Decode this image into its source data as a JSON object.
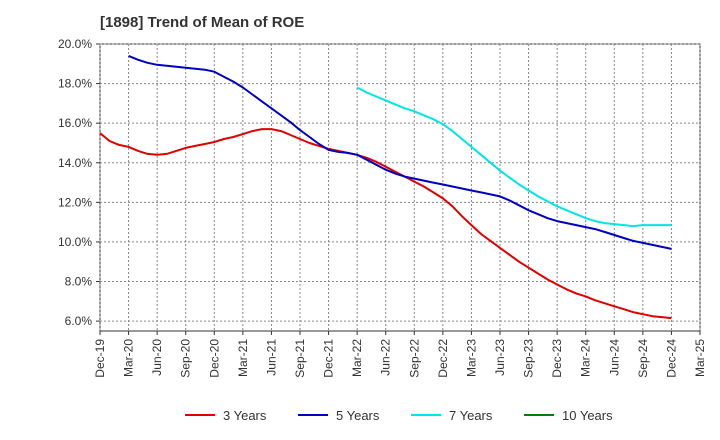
{
  "chart_data": {
    "type": "line",
    "title": "[1898]  Trend of Mean of ROE",
    "xlabel": "",
    "ylabel": "",
    "x_ticks": [
      "Dec-19",
      "Mar-20",
      "Jun-20",
      "Sep-20",
      "Dec-20",
      "Mar-21",
      "Jun-21",
      "Sep-21",
      "Dec-21",
      "Mar-22",
      "Jun-22",
      "Sep-22",
      "Dec-22",
      "Mar-23",
      "Jun-23",
      "Sep-23",
      "Dec-23",
      "Mar-24",
      "Jun-24",
      "Sep-24",
      "Dec-24",
      "Mar-25"
    ],
    "y_ticks": [
      "6.0%",
      "8.0%",
      "10.0%",
      "12.0%",
      "14.0%",
      "16.0%",
      "18.0%",
      "20.0%"
    ],
    "ylim": [
      5.5,
      20.0
    ],
    "grid": true,
    "legend_position": "bottom",
    "series": [
      {
        "name": "3 Years",
        "color": "#e00000",
        "points": [
          [
            "Dec-19",
            15.5
          ],
          [
            "Jan-20",
            15.1
          ],
          [
            "Feb-20",
            14.9
          ],
          [
            "Mar-20",
            14.8
          ],
          [
            "Apr-20",
            14.6
          ],
          [
            "May-20",
            14.45
          ],
          [
            "Jun-20",
            14.4
          ],
          [
            "Jul-20",
            14.45
          ],
          [
            "Aug-20",
            14.6
          ],
          [
            "Sep-20",
            14.75
          ],
          [
            "Oct-20",
            14.85
          ],
          [
            "Nov-20",
            14.95
          ],
          [
            "Dec-20",
            15.05
          ],
          [
            "Jan-21",
            15.2
          ],
          [
            "Feb-21",
            15.3
          ],
          [
            "Mar-21",
            15.45
          ],
          [
            "Apr-21",
            15.6
          ],
          [
            "May-21",
            15.7
          ],
          [
            "Jun-21",
            15.7
          ],
          [
            "Jul-21",
            15.6
          ],
          [
            "Aug-21",
            15.4
          ],
          [
            "Sep-21",
            15.2
          ],
          [
            "Oct-21",
            15.0
          ],
          [
            "Nov-21",
            14.85
          ],
          [
            "Dec-21",
            14.7
          ],
          [
            "Jan-22",
            14.6
          ],
          [
            "Feb-22",
            14.5
          ],
          [
            "Mar-22",
            14.4
          ],
          [
            "Apr-22",
            14.25
          ],
          [
            "May-22",
            14.05
          ],
          [
            "Jun-22",
            13.8
          ],
          [
            "Jul-22",
            13.55
          ],
          [
            "Aug-22",
            13.3
          ],
          [
            "Sep-22",
            13.05
          ],
          [
            "Oct-22",
            12.8
          ],
          [
            "Nov-22",
            12.5
          ],
          [
            "Dec-22",
            12.2
          ],
          [
            "Jan-23",
            11.8
          ],
          [
            "Feb-23",
            11.3
          ],
          [
            "Mar-23",
            10.85
          ],
          [
            "Apr-23",
            10.4
          ],
          [
            "May-23",
            10.05
          ],
          [
            "Jun-23",
            9.7
          ],
          [
            "Jul-23",
            9.35
          ],
          [
            "Aug-23",
            9.0
          ],
          [
            "Sep-23",
            8.7
          ],
          [
            "Oct-23",
            8.4
          ],
          [
            "Nov-23",
            8.1
          ],
          [
            "Dec-23",
            7.85
          ],
          [
            "Jan-24",
            7.6
          ],
          [
            "Feb-24",
            7.4
          ],
          [
            "Mar-24",
            7.25
          ],
          [
            "Apr-24",
            7.05
          ],
          [
            "May-24",
            6.9
          ],
          [
            "Jun-24",
            6.75
          ],
          [
            "Jul-24",
            6.6
          ],
          [
            "Aug-24",
            6.45
          ],
          [
            "Sep-24",
            6.35
          ],
          [
            "Oct-24",
            6.25
          ],
          [
            "Nov-24",
            6.2
          ],
          [
            "Dec-24",
            6.15
          ]
        ]
      },
      {
        "name": "5 Years",
        "color": "#0000c0",
        "points": [
          [
            "Mar-20",
            19.4
          ],
          [
            "Apr-20",
            19.2
          ],
          [
            "May-20",
            19.05
          ],
          [
            "Jun-20",
            18.95
          ],
          [
            "Jul-20",
            18.9
          ],
          [
            "Aug-20",
            18.85
          ],
          [
            "Sep-20",
            18.8
          ],
          [
            "Oct-20",
            18.75
          ],
          [
            "Nov-20",
            18.7
          ],
          [
            "Dec-20",
            18.6
          ],
          [
            "Jan-21",
            18.35
          ],
          [
            "Feb-21",
            18.1
          ],
          [
            "Mar-21",
            17.8
          ],
          [
            "Apr-21",
            17.45
          ],
          [
            "May-21",
            17.1
          ],
          [
            "Jun-21",
            16.75
          ],
          [
            "Jul-21",
            16.4
          ],
          [
            "Aug-21",
            16.05
          ],
          [
            "Sep-21",
            15.65
          ],
          [
            "Oct-21",
            15.3
          ],
          [
            "Nov-21",
            14.95
          ],
          [
            "Dec-21",
            14.65
          ],
          [
            "Jan-22",
            14.55
          ],
          [
            "Feb-22",
            14.5
          ],
          [
            "Mar-22",
            14.4
          ],
          [
            "Apr-22",
            14.15
          ],
          [
            "May-22",
            13.9
          ],
          [
            "Jun-22",
            13.65
          ],
          [
            "Jul-22",
            13.45
          ],
          [
            "Aug-22",
            13.3
          ],
          [
            "Sep-22",
            13.2
          ],
          [
            "Oct-22",
            13.1
          ],
          [
            "Nov-22",
            13.0
          ],
          [
            "Dec-22",
            12.9
          ],
          [
            "Jan-23",
            12.8
          ],
          [
            "Feb-23",
            12.7
          ],
          [
            "Mar-23",
            12.6
          ],
          [
            "Apr-23",
            12.5
          ],
          [
            "May-23",
            12.4
          ],
          [
            "Jun-23",
            12.3
          ],
          [
            "Jul-23",
            12.1
          ],
          [
            "Aug-23",
            11.85
          ],
          [
            "Sep-23",
            11.6
          ],
          [
            "Oct-23",
            11.4
          ],
          [
            "Nov-23",
            11.2
          ],
          [
            "Dec-23",
            11.05
          ],
          [
            "Jan-24",
            10.95
          ],
          [
            "Feb-24",
            10.85
          ],
          [
            "Mar-24",
            10.75
          ],
          [
            "Apr-24",
            10.65
          ],
          [
            "May-24",
            10.5
          ],
          [
            "Jun-24",
            10.35
          ],
          [
            "Jul-24",
            10.2
          ],
          [
            "Aug-24",
            10.05
          ],
          [
            "Sep-24",
            9.95
          ],
          [
            "Oct-24",
            9.85
          ],
          [
            "Nov-24",
            9.75
          ],
          [
            "Dec-24",
            9.65
          ]
        ]
      },
      {
        "name": "7 Years",
        "color": "#00e5e5",
        "points": [
          [
            "Mar-22",
            17.8
          ],
          [
            "Apr-22",
            17.55
          ],
          [
            "May-22",
            17.35
          ],
          [
            "Jun-22",
            17.15
          ],
          [
            "Jul-22",
            16.95
          ],
          [
            "Aug-22",
            16.75
          ],
          [
            "Sep-22",
            16.6
          ],
          [
            "Oct-22",
            16.4
          ],
          [
            "Nov-22",
            16.2
          ],
          [
            "Dec-22",
            15.95
          ],
          [
            "Jan-23",
            15.6
          ],
          [
            "Feb-23",
            15.2
          ],
          [
            "Mar-23",
            14.8
          ],
          [
            "Apr-23",
            14.4
          ],
          [
            "May-23",
            14.0
          ],
          [
            "Jun-23",
            13.6
          ],
          [
            "Jul-23",
            13.25
          ],
          [
            "Aug-23",
            12.9
          ],
          [
            "Sep-23",
            12.6
          ],
          [
            "Oct-23",
            12.3
          ],
          [
            "Nov-23",
            12.05
          ],
          [
            "Dec-23",
            11.8
          ],
          [
            "Jan-24",
            11.6
          ],
          [
            "Feb-24",
            11.4
          ],
          [
            "Mar-24",
            11.2
          ],
          [
            "Apr-24",
            11.05
          ],
          [
            "May-24",
            10.95
          ],
          [
            "Jun-24",
            10.9
          ],
          [
            "Jul-24",
            10.85
          ],
          [
            "Aug-24",
            10.8
          ],
          [
            "Sep-24",
            10.85
          ],
          [
            "Oct-24",
            10.85
          ],
          [
            "Nov-24",
            10.85
          ],
          [
            "Dec-24",
            10.85
          ]
        ]
      },
      {
        "name": "10 Years",
        "color": "#008000",
        "points": []
      }
    ]
  }
}
